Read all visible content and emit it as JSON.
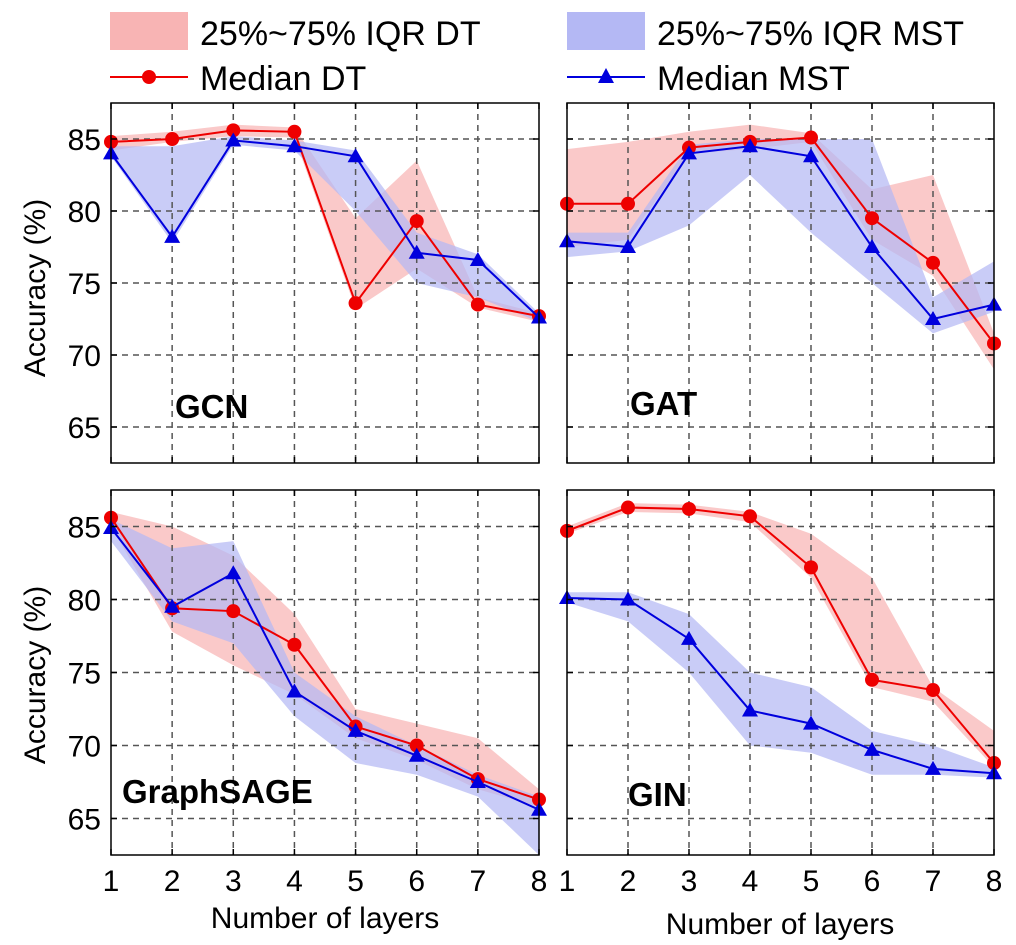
{
  "legend": {
    "iqr_dt": "25%~75% IQR DT",
    "iqr_mst": "25%~75% IQR MST",
    "median_dt": "Median DT",
    "median_mst": "Median MST"
  },
  "colors": {
    "dt_line": "#ee0000",
    "dt_band": "#f8b4b4",
    "mst_line": "#0000dd",
    "mst_band": "#b4b8f4",
    "grid": "#555555"
  },
  "axes": {
    "xlabel": "Number of layers",
    "ylabel": "Accuracy (%)",
    "xlim": [
      1,
      8
    ],
    "ylim": [
      62.5,
      87.5
    ],
    "xticks": [
      1,
      2,
      3,
      4,
      5,
      6,
      7,
      8
    ],
    "yticks": [
      65,
      70,
      75,
      80,
      85
    ],
    "grid": true,
    "grid_style": "dashed"
  },
  "chart_data": [
    {
      "type": "line",
      "title": "GCN",
      "x": [
        1,
        2,
        3,
        4,
        5,
        6,
        7,
        8
      ],
      "series": [
        {
          "name": "Median DT",
          "values": [
            84.8,
            85.0,
            85.6,
            85.5,
            73.6,
            79.3,
            73.5,
            72.7
          ]
        },
        {
          "name": "Median MST",
          "values": [
            84.0,
            78.2,
            84.9,
            84.5,
            83.8,
            77.1,
            76.6,
            72.6
          ]
        }
      ],
      "bands": [
        {
          "name": "25%~75% IQR DT",
          "low": [
            84.2,
            84.8,
            85.2,
            85.1,
            73.2,
            76.0,
            73.3,
            72.3
          ],
          "high": [
            85.2,
            85.5,
            86.0,
            85.8,
            79.5,
            83.5,
            74.0,
            72.9
          ]
        },
        {
          "name": "25%~75% IQR MST",
          "low": [
            83.8,
            77.8,
            84.6,
            84.2,
            80.0,
            75.0,
            74.0,
            72.3
          ],
          "high": [
            84.5,
            84.5,
            85.2,
            84.9,
            84.2,
            78.5,
            77.0,
            72.9
          ]
        }
      ]
    },
    {
      "type": "line",
      "title": "GAT",
      "x": [
        1,
        2,
        3,
        4,
        5,
        6,
        7,
        8
      ],
      "series": [
        {
          "name": "Median DT",
          "values": [
            80.5,
            80.5,
            84.4,
            84.8,
            85.1,
            79.5,
            76.4,
            70.8
          ]
        },
        {
          "name": "Median MST",
          "values": [
            77.9,
            77.5,
            84.0,
            84.5,
            83.8,
            77.5,
            72.5,
            73.5
          ]
        }
      ],
      "bands": [
        {
          "name": "25%~75% IQR DT",
          "low": [
            77.5,
            78.0,
            84.0,
            84.3,
            84.8,
            78.0,
            75.5,
            69.0
          ],
          "high": [
            84.3,
            84.8,
            85.5,
            86.0,
            85.4,
            81.5,
            82.5,
            71.5
          ]
        },
        {
          "name": "25%~75% IQR MST",
          "low": [
            76.8,
            77.2,
            79.0,
            82.5,
            78.5,
            75.0,
            71.5,
            73.0
          ],
          "high": [
            78.5,
            78.5,
            84.6,
            85.0,
            85.0,
            85.0,
            74.0,
            76.5
          ]
        }
      ]
    },
    {
      "type": "line",
      "title": "GraphSAGE",
      "x": [
        1,
        2,
        3,
        4,
        5,
        6,
        7,
        8
      ],
      "series": [
        {
          "name": "Median DT",
          "values": [
            85.6,
            79.4,
            79.2,
            76.9,
            71.3,
            70.0,
            67.7,
            66.3
          ]
        },
        {
          "name": "Median MST",
          "values": [
            84.9,
            79.5,
            81.8,
            73.7,
            71.0,
            69.3,
            67.5,
            65.6
          ]
        }
      ],
      "bands": [
        {
          "name": "25%~75% IQR DT",
          "low": [
            85.0,
            77.8,
            75.5,
            73.5,
            70.5,
            69.0,
            67.0,
            65.8
          ],
          "high": [
            86.0,
            85.0,
            83.0,
            79.0,
            72.5,
            71.5,
            70.5,
            67.0
          ]
        },
        {
          "name": "25%~75% IQR MST",
          "low": [
            84.0,
            78.5,
            77.0,
            72.0,
            68.8,
            68.0,
            66.5,
            62.5
          ],
          "high": [
            85.5,
            83.5,
            84.0,
            75.0,
            72.0,
            70.0,
            68.0,
            66.5
          ]
        }
      ]
    },
    {
      "type": "line",
      "title": "GIN",
      "x": [
        1,
        2,
        3,
        4,
        5,
        6,
        7,
        8
      ],
      "series": [
        {
          "name": "Median DT",
          "values": [
            84.7,
            86.3,
            86.2,
            85.7,
            82.2,
            74.5,
            73.8,
            68.8
          ]
        },
        {
          "name": "Median MST",
          "values": [
            80.1,
            80.0,
            77.3,
            72.4,
            71.5,
            69.7,
            68.4,
            68.1
          ]
        }
      ],
      "bands": [
        {
          "name": "25%~75% IQR DT",
          "low": [
            84.5,
            86.0,
            85.9,
            85.3,
            81.5,
            74.0,
            73.0,
            68.5
          ],
          "high": [
            85.0,
            86.6,
            86.5,
            86.0,
            84.5,
            81.5,
            74.0,
            71.0
          ]
        },
        {
          "name": "25%~75% IQR MST",
          "low": [
            79.8,
            78.5,
            75.0,
            70.0,
            69.5,
            68.0,
            68.0,
            67.8
          ],
          "high": [
            80.5,
            80.5,
            79.0,
            75.0,
            74.0,
            71.0,
            70.0,
            68.5
          ]
        }
      ]
    }
  ]
}
